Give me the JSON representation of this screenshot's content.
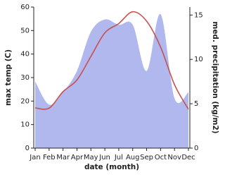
{
  "chart_data": {
    "type": "line-area",
    "x_label": "date (month)",
    "y_label": "max temp (C)",
    "y2_label": "med. precipitation (kg/m2)",
    "categories": [
      "Jan",
      "Feb",
      "Mar",
      "Apr",
      "May",
      "Jun",
      "Jul",
      "Aug",
      "Sep",
      "Oct",
      "Nov",
      "Dec"
    ],
    "series": [
      {
        "kind": "area",
        "axis": "y2",
        "color": "#b0b8ee",
        "values": [
          7.5,
          4.9,
          6.3,
          8.7,
          13.1,
          14.5,
          13.9,
          13.9,
          8.7,
          15.1,
          5.6,
          6.3
        ]
      },
      {
        "kind": "line",
        "axis": "y",
        "color": "#c8504f",
        "values": [
          17.1,
          17,
          24,
          29,
          39,
          49,
          53,
          58,
          54,
          43,
          27,
          16.5
        ]
      }
    ],
    "ylim": [
      0,
      60
    ],
    "yticks": [
      0,
      10,
      20,
      30,
      40,
      50,
      60
    ],
    "y2lim": [
      0,
      15.9
    ],
    "y2ticks": [
      0,
      5,
      10,
      15
    ]
  }
}
